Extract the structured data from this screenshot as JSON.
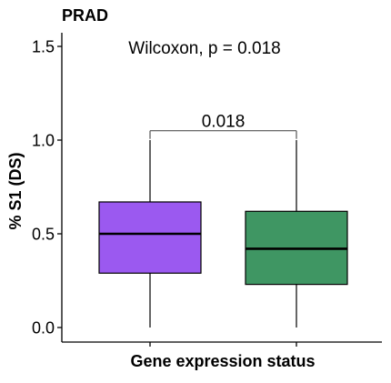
{
  "chart_data": {
    "type": "box",
    "title": "PRAD",
    "xlabel": "Gene expression status",
    "ylabel": "% S1 (DS)",
    "ylim": [
      -0.05,
      1.58
    ],
    "yticks": [
      0.0,
      0.5,
      1.0,
      1.5
    ],
    "ytick_labels": [
      "0.0",
      "0.5",
      "1.0",
      "1.5"
    ],
    "categories": [
      "",
      ""
    ],
    "boxes": [
      {
        "min": 0.0,
        "q1": 0.29,
        "median": 0.5,
        "q3": 0.67,
        "max": 1.0,
        "color": "#9b59f0"
      },
      {
        "min": 0.0,
        "q1": 0.23,
        "median": 0.42,
        "q3": 0.62,
        "max": 1.0,
        "color": "#3f9663"
      }
    ],
    "stat_test_label": "Wilcoxon, p = 0.018",
    "bracket": {
      "from": 0,
      "to": 1,
      "y": 1.05,
      "label": "0.018"
    },
    "grid": false,
    "legend": "none"
  }
}
